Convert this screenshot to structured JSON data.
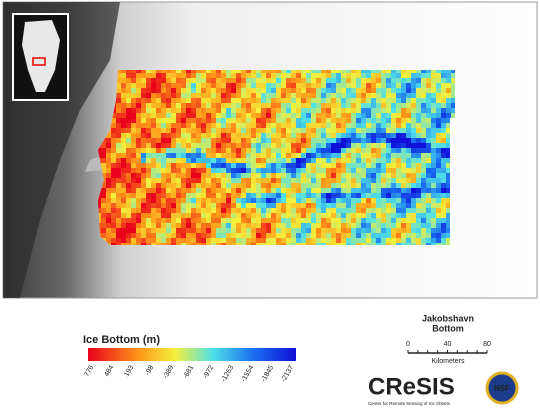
{
  "legend": {
    "title": "Ice Bottom (m)",
    "ticks": [
      776,
      484,
      193,
      -98,
      -389,
      -681,
      -972,
      -1263,
      -1554,
      -1845,
      -2137
    ]
  },
  "map_title": {
    "line1": "Jakobshavn",
    "line2": "Bottom"
  },
  "scale_bar": {
    "ticks": [
      0,
      40,
      80
    ],
    "unit": "Kilometers"
  },
  "logo": {
    "name": "CReSIS",
    "subtitle": "Center for Remote Sensing of Ice Sheets",
    "partner": "NSF"
  }
}
